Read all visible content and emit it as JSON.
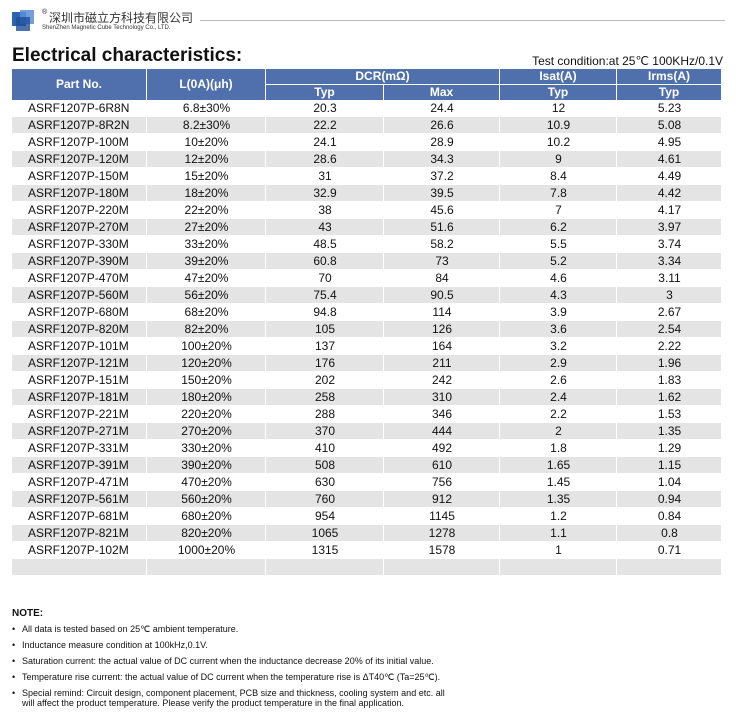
{
  "header": {
    "registered": "®",
    "company_cn": "深圳市磁立方科技有限公司",
    "company_en": "ShenZhen Magnetic Cube Technology Co., LTD."
  },
  "title": "Electrical characteristics:",
  "test_condition": "Test condition:at 25℃ 100KHz/0.1V",
  "table": {
    "header_top": [
      "Part No.",
      "L(0A)(μh)",
      "DCR(mΩ)",
      "Isat(A)",
      "Irms(A)"
    ],
    "header_sub": [
      "Typ",
      "Max",
      "Typ",
      "Typ"
    ],
    "rows": [
      [
        "ASRF1207P-6R8N",
        "6.8±30%",
        "20.3",
        "24.4",
        "12",
        "5.23"
      ],
      [
        "ASRF1207P-8R2N",
        "8.2±30%",
        "22.2",
        "26.6",
        "10.9",
        "5.08"
      ],
      [
        "ASRF1207P-100M",
        "10±20%",
        "24.1",
        "28.9",
        "10.2",
        "4.95"
      ],
      [
        "ASRF1207P-120M",
        "12±20%",
        "28.6",
        "34.3",
        "9",
        "4.61"
      ],
      [
        "ASRF1207P-150M",
        "15±20%",
        "31",
        "37.2",
        "8.4",
        "4.49"
      ],
      [
        "ASRF1207P-180M",
        "18±20%",
        "32.9",
        "39.5",
        "7.8",
        "4.42"
      ],
      [
        "ASRF1207P-220M",
        "22±20%",
        "38",
        "45.6",
        "7",
        "4.17"
      ],
      [
        "ASRF1207P-270M",
        "27±20%",
        "43",
        "51.6",
        "6.2",
        "3.97"
      ],
      [
        "ASRF1207P-330M",
        "33±20%",
        "48.5",
        "58.2",
        "5.5",
        "3.74"
      ],
      [
        "ASRF1207P-390M",
        "39±20%",
        "60.8",
        "73",
        "5.2",
        "3.34"
      ],
      [
        "ASRF1207P-470M",
        "47±20%",
        "70",
        "84",
        "4.6",
        "3.11"
      ],
      [
        "ASRF1207P-560M",
        "56±20%",
        "75.4",
        "90.5",
        "4.3",
        "3"
      ],
      [
        "ASRF1207P-680M",
        "68±20%",
        "94.8",
        "114",
        "3.9",
        "2.67"
      ],
      [
        "ASRF1207P-820M",
        "82±20%",
        "105",
        "126",
        "3.6",
        "2.54"
      ],
      [
        "ASRF1207P-101M",
        "100±20%",
        "137",
        "164",
        "3.2",
        "2.22"
      ],
      [
        "ASRF1207P-121M",
        "120±20%",
        "176",
        "211",
        "2.9",
        "1.96"
      ],
      [
        "ASRF1207P-151M",
        "150±20%",
        "202",
        "242",
        "2.6",
        "1.83"
      ],
      [
        "ASRF1207P-181M",
        "180±20%",
        "258",
        "310",
        "2.4",
        "1.62"
      ],
      [
        "ASRF1207P-221M",
        "220±20%",
        "288",
        "346",
        "2.2",
        "1.53"
      ],
      [
        "ASRF1207P-271M",
        "270±20%",
        "370",
        "444",
        "2",
        "1.35"
      ],
      [
        "ASRF1207P-331M",
        "330±20%",
        "410",
        "492",
        "1.8",
        "1.29"
      ],
      [
        "ASRF1207P-391M",
        "390±20%",
        "508",
        "610",
        "1.65",
        "1.15"
      ],
      [
        "ASRF1207P-471M",
        "470±20%",
        "630",
        "756",
        "1.45",
        "1.04"
      ],
      [
        "ASRF1207P-561M",
        "560±20%",
        "760",
        "912",
        "1.35",
        "0.94"
      ],
      [
        "ASRF1207P-681M",
        "680±20%",
        "954",
        "1145",
        "1.2",
        "0.84"
      ],
      [
        "ASRF1207P-821M",
        "820±20%",
        "1065",
        "1278",
        "1.1",
        "0.8"
      ],
      [
        "ASRF1207P-102M",
        "1000±20%",
        "1315",
        "1578",
        "1",
        "0.71"
      ]
    ]
  },
  "notes": {
    "title": "NOTE:",
    "items": [
      "All data is tested based on 25℃ ambient temperature.",
      "Inductance measure condition at 100kHz,0.1V.",
      "Saturation current: the actual value of DC current when the inductance decrease 20% of its initial value.",
      "Temperature rise current: the actual value of DC current when the temperature rise is ΔT40℃ (Ta=25℃).",
      "Special remind: Circuit design, component placement, PCB size and thickness, cooling system and etc. all will affect the product temperature. Please verify the product temperature in the final application."
    ]
  }
}
